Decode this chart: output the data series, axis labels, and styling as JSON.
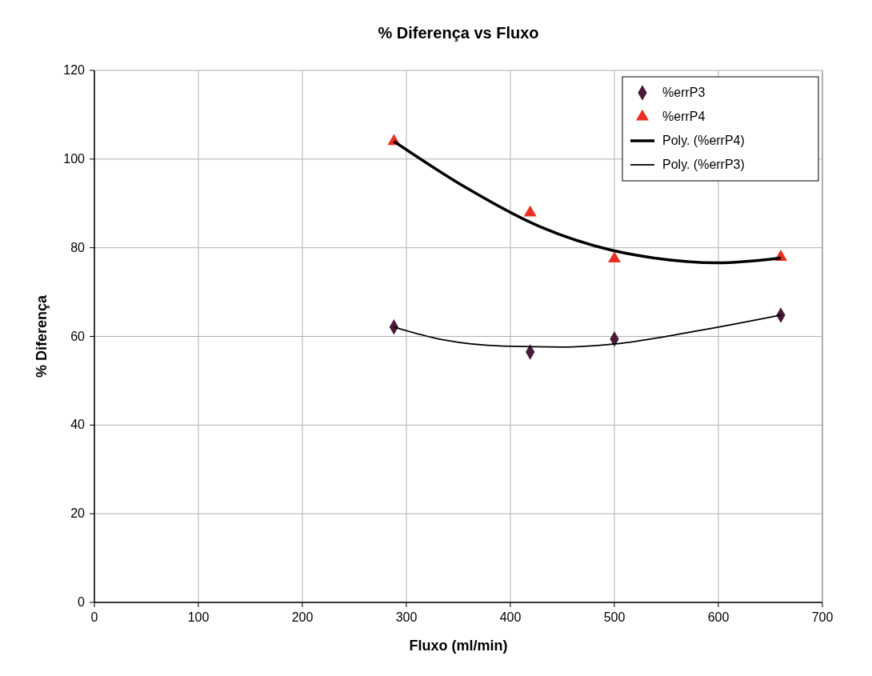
{
  "chart_data": {
    "type": "scatter",
    "title": "%  Diferença vs Fluxo",
    "xlabel": "Fluxo (ml/min)",
    "ylabel": "% Diferença",
    "xlim": [
      0,
      700
    ],
    "xticks": [
      0,
      100,
      200,
      300,
      400,
      500,
      600,
      700
    ],
    "ylim": [
      0,
      120
    ],
    "yticks": [
      0,
      20,
      40,
      60,
      80,
      100,
      120
    ],
    "grid": true,
    "legend": "top right",
    "series": [
      {
        "name": "%errP3",
        "marker": "diamond",
        "color": "#4a1a3a",
        "x": [
          660,
          500,
          419,
          288
        ],
        "values": [
          64.8,
          59.4,
          56.5,
          62.1
        ]
      },
      {
        "name": "%errP4",
        "marker": "triangle",
        "color": "#e83020",
        "x": [
          660,
          500,
          419,
          288
        ],
        "values": [
          77.9,
          77.5,
          87.9,
          104
        ]
      },
      {
        "name": "Poly. (%errP4)",
        "type": "line",
        "marker": "none",
        "color": "#000000",
        "x": [
          660,
          599,
          538,
          500,
          429,
          357,
          288
        ],
        "values": [
          77.7,
          76.6,
          77.7,
          79.3,
          84.7,
          93.6,
          104
        ]
      },
      {
        "name": "Poly. (%errP3)",
        "type": "line",
        "marker": "none",
        "color": "#000000",
        "x": [
          660,
          574,
          500,
          451,
          393,
          336,
          288
        ],
        "values": [
          64.8,
          61,
          58.3,
          57.6,
          57.8,
          59.2,
          62.1
        ]
      }
    ]
  }
}
